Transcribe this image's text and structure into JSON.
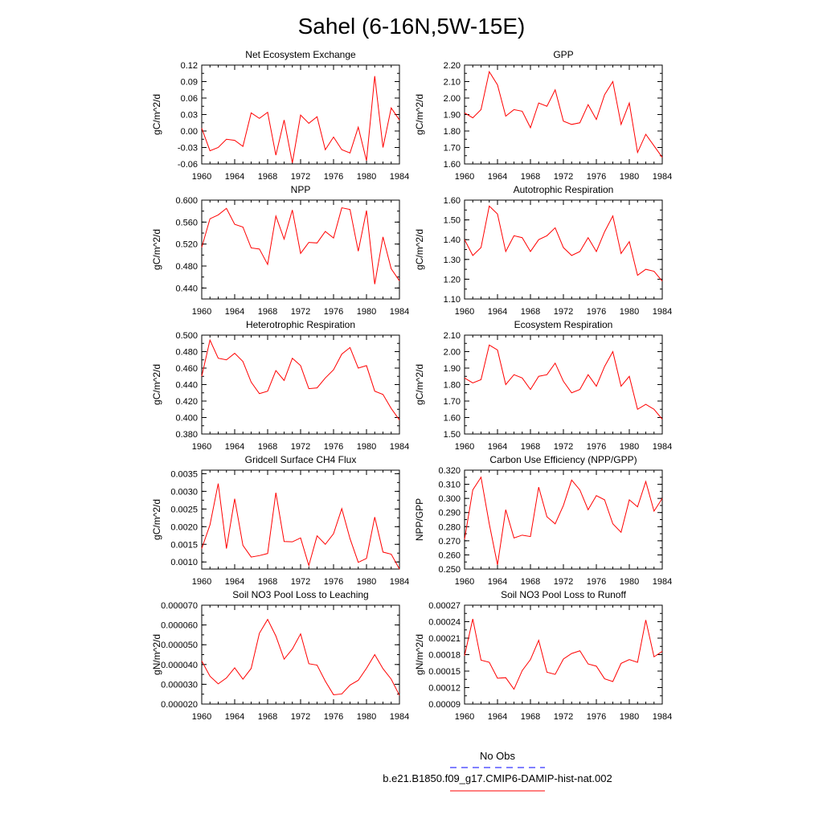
{
  "title": "Sahel (6-16N,5W-15E)",
  "colors": {
    "model": "#ff0000",
    "obs": "#0000ff",
    "axis": "#000000"
  },
  "legend": {
    "obs_label": "No Obs",
    "model_label": "b.e21.B1850.f09_g17.CMIP6-DAMIP-hist-nat.002"
  },
  "chart_data": [
    {
      "type": "line",
      "title": "Net Ecosystem Exchange",
      "ylabel": "gC/m^2/d",
      "xlim": [
        1960,
        1984
      ],
      "ylim": [
        -0.06,
        0.12
      ],
      "xticks": [
        1960,
        1964,
        1968,
        1972,
        1976,
        1980,
        1984
      ],
      "xticklabels": [
        "1960",
        "1964",
        "1968",
        "1972",
        "1976",
        "1980",
        "1984"
      ],
      "yticks": [
        -0.06,
        -0.03,
        0.0,
        0.03,
        0.06,
        0.09,
        0.12
      ],
      "yticklabels": [
        "-0.06",
        "-0.03",
        "0.00",
        "0.03",
        "0.06",
        "0.09",
        "0.12"
      ],
      "series": [
        {
          "values": [
            0.005,
            -0.036,
            -0.03,
            -0.015,
            -0.017,
            -0.028,
            0.033,
            0.023,
            0.034,
            -0.044,
            0.02,
            -0.058,
            0.029,
            0.014,
            0.026,
            -0.034,
            -0.011,
            -0.034,
            -0.04,
            0.007,
            -0.054,
            0.1,
            -0.03,
            0.042,
            0.02
          ]
        }
      ]
    },
    {
      "type": "line",
      "title": "GPP",
      "ylabel": "gC/m^2/d",
      "xlim": [
        1960,
        1984
      ],
      "ylim": [
        1.6,
        2.2
      ],
      "xticks": [
        1960,
        1964,
        1968,
        1972,
        1976,
        1980,
        1984
      ],
      "xticklabels": [
        "1960",
        "1964",
        "1968",
        "1972",
        "1976",
        "1980",
        "1984"
      ],
      "yticks": [
        1.6,
        1.7,
        1.8,
        1.9,
        2.0,
        2.1,
        2.2
      ],
      "yticklabels": [
        "1.60",
        "1.70",
        "1.80",
        "1.90",
        "2.00",
        "2.10",
        "2.20"
      ],
      "series": [
        {
          "values": [
            1.91,
            1.88,
            1.93,
            2.16,
            2.08,
            1.89,
            1.93,
            1.92,
            1.82,
            1.97,
            1.95,
            2.05,
            1.86,
            1.84,
            1.85,
            1.96,
            1.87,
            2.02,
            2.1,
            1.84,
            1.97,
            1.67,
            1.78,
            1.71,
            1.64
          ]
        }
      ]
    },
    {
      "type": "line",
      "title": "NPP",
      "ylabel": "gC/m^2/d",
      "xlim": [
        1960,
        1984
      ],
      "ylim": [
        0.42,
        0.6
      ],
      "xticks": [
        1960,
        1964,
        1968,
        1972,
        1976,
        1980,
        1984
      ],
      "xticklabels": [
        "1960",
        "1964",
        "1968",
        "1972",
        "1976",
        "1980",
        "1984"
      ],
      "yticks": [
        0.44,
        0.48,
        0.52,
        0.56,
        0.6
      ],
      "yticklabels": [
        "0.440",
        "0.480",
        "0.520",
        "0.560",
        "0.600"
      ],
      "series": [
        {
          "values": [
            0.514,
            0.566,
            0.573,
            0.585,
            0.556,
            0.551,
            0.513,
            0.511,
            0.483,
            0.571,
            0.529,
            0.582,
            0.503,
            0.523,
            0.522,
            0.543,
            0.531,
            0.586,
            0.583,
            0.507,
            0.581,
            0.447,
            0.533,
            0.475,
            0.453
          ]
        }
      ]
    },
    {
      "type": "line",
      "title": "Autotrophic Respiration",
      "ylabel": "gC/m^2/d",
      "xlim": [
        1960,
        1984
      ],
      "ylim": [
        1.1,
        1.6
      ],
      "xticks": [
        1960,
        1964,
        1968,
        1972,
        1976,
        1980,
        1984
      ],
      "xticklabels": [
        "1960",
        "1964",
        "1968",
        "1972",
        "1976",
        "1980",
        "1984"
      ],
      "yticks": [
        1.1,
        1.2,
        1.3,
        1.4,
        1.5,
        1.6
      ],
      "yticklabels": [
        "1.10",
        "1.20",
        "1.30",
        "1.40",
        "1.50",
        "1.60"
      ],
      "series": [
        {
          "values": [
            1.4,
            1.32,
            1.36,
            1.57,
            1.53,
            1.34,
            1.42,
            1.41,
            1.34,
            1.4,
            1.42,
            1.46,
            1.36,
            1.32,
            1.34,
            1.41,
            1.34,
            1.44,
            1.52,
            1.33,
            1.39,
            1.22,
            1.25,
            1.24,
            1.19
          ]
        }
      ]
    },
    {
      "type": "line",
      "title": "Heterotrophic Respiration",
      "ylabel": "gC/m^2/d",
      "xlim": [
        1960,
        1984
      ],
      "ylim": [
        0.38,
        0.5
      ],
      "xticks": [
        1960,
        1964,
        1968,
        1972,
        1976,
        1980,
        1984
      ],
      "xticklabels": [
        "1960",
        "1964",
        "1968",
        "1972",
        "1976",
        "1980",
        "1984"
      ],
      "yticks": [
        0.38,
        0.4,
        0.42,
        0.44,
        0.46,
        0.48,
        0.5
      ],
      "yticklabels": [
        "0.380",
        "0.400",
        "0.420",
        "0.440",
        "0.460",
        "0.480",
        "0.500"
      ],
      "series": [
        {
          "values": [
            0.45,
            0.494,
            0.472,
            0.47,
            0.478,
            0.468,
            0.443,
            0.429,
            0.432,
            0.457,
            0.445,
            0.472,
            0.463,
            0.435,
            0.436,
            0.448,
            0.458,
            0.477,
            0.485,
            0.46,
            0.463,
            0.432,
            0.428,
            0.411,
            0.397
          ]
        }
      ]
    },
    {
      "type": "line",
      "title": "Ecosystem Respiration",
      "ylabel": "gC/m^2/d",
      "xlim": [
        1960,
        1984
      ],
      "ylim": [
        1.5,
        2.1
      ],
      "xticks": [
        1960,
        1964,
        1968,
        1972,
        1976,
        1980,
        1984
      ],
      "xticklabels": [
        "1960",
        "1964",
        "1968",
        "1972",
        "1976",
        "1980",
        "1984"
      ],
      "yticks": [
        1.5,
        1.6,
        1.7,
        1.8,
        1.9,
        2.0,
        2.1
      ],
      "yticklabels": [
        "1.50",
        "1.60",
        "1.70",
        "1.80",
        "1.90",
        "2.00",
        "2.10"
      ],
      "series": [
        {
          "values": [
            1.84,
            1.81,
            1.83,
            2.04,
            2.01,
            1.8,
            1.86,
            1.84,
            1.77,
            1.85,
            1.86,
            1.93,
            1.82,
            1.75,
            1.77,
            1.86,
            1.79,
            1.91,
            2.0,
            1.79,
            1.85,
            1.65,
            1.68,
            1.65,
            1.59
          ]
        }
      ]
    },
    {
      "type": "line",
      "title": "Gridcell Surface CH4 Flux",
      "ylabel": "gC/m^2/d",
      "xlim": [
        1960,
        1984
      ],
      "ylim": [
        0.0008,
        0.0036
      ],
      "xticks": [
        1960,
        1964,
        1968,
        1972,
        1976,
        1980,
        1984
      ],
      "xticklabels": [
        "1960",
        "1964",
        "1968",
        "1972",
        "1976",
        "1980",
        "1984"
      ],
      "yticks": [
        0.001,
        0.0015,
        0.002,
        0.0025,
        0.003,
        0.0035
      ],
      "yticklabels": [
        "0.0010",
        "0.0015",
        "0.0020",
        "0.0025",
        "0.0030",
        "0.0035"
      ],
      "series": [
        {
          "values": [
            0.00138,
            0.00205,
            0.00322,
            0.00138,
            0.00279,
            0.00147,
            0.00114,
            0.00118,
            0.00124,
            0.00296,
            0.00158,
            0.00157,
            0.00168,
            0.0009,
            0.00174,
            0.0015,
            0.0018,
            0.00251,
            0.00166,
            0.00099,
            0.0011,
            0.00227,
            0.00128,
            0.00122,
            0.0008
          ]
        }
      ]
    },
    {
      "type": "line",
      "title": "Carbon Use Efficiency (NPP/GPP)",
      "ylabel": "NPP/GPP",
      "xlim": [
        1960,
        1984
      ],
      "ylim": [
        0.25,
        0.32
      ],
      "xticks": [
        1960,
        1964,
        1968,
        1972,
        1976,
        1980,
        1984
      ],
      "xticklabels": [
        "1960",
        "1964",
        "1968",
        "1972",
        "1976",
        "1980",
        "1984"
      ],
      "yticks": [
        0.25,
        0.26,
        0.27,
        0.28,
        0.29,
        0.3,
        0.31,
        0.32
      ],
      "yticklabels": [
        "0.250",
        "0.260",
        "0.270",
        "0.280",
        "0.290",
        "0.300",
        "0.310",
        "0.320"
      ],
      "series": [
        {
          "values": [
            0.271,
            0.306,
            0.315,
            0.282,
            0.253,
            0.292,
            0.272,
            0.274,
            0.273,
            0.308,
            0.287,
            0.282,
            0.295,
            0.313,
            0.306,
            0.292,
            0.302,
            0.299,
            0.282,
            0.276,
            0.299,
            0.294,
            0.312,
            0.291,
            0.3
          ]
        }
      ]
    },
    {
      "type": "line",
      "title": "Soil NO3 Pool Loss to Leaching",
      "ylabel": "gN/m^2/d",
      "xlim": [
        1960,
        1984
      ],
      "ylim": [
        2e-05,
        7e-05
      ],
      "xticks": [
        1960,
        1964,
        1968,
        1972,
        1976,
        1980,
        1984
      ],
      "xticklabels": [
        "1960",
        "1964",
        "1968",
        "1972",
        "1976",
        "1980",
        "1984"
      ],
      "yticks": [
        2e-05,
        3e-05,
        4e-05,
        5e-05,
        6e-05,
        7e-05
      ],
      "yticklabels": [
        "0.000020",
        "0.000030",
        "0.000040",
        "0.000050",
        "0.000060",
        "0.000070"
      ],
      "series": [
        {
          "values": [
            4.18e-05,
            3.41e-05,
            3.02e-05,
            3.32e-05,
            3.83e-05,
            3.26e-05,
            3.8e-05,
            5.58e-05,
            6.28e-05,
            5.44e-05,
            4.27e-05,
            4.78e-05,
            5.55e-05,
            4.04e-05,
            3.97e-05,
            3.16e-05,
            2.47e-05,
            2.51e-05,
            2.96e-05,
            3.2e-05,
            3.81e-05,
            4.5e-05,
            3.79e-05,
            3.26e-05,
            2.44e-05
          ]
        }
      ]
    },
    {
      "type": "line",
      "title": "Soil NO3 Pool Loss to Runoff",
      "ylabel": "gN/m^2/d",
      "xlim": [
        1960,
        1984
      ],
      "ylim": [
        9e-05,
        0.00027
      ],
      "xticks": [
        1960,
        1964,
        1968,
        1972,
        1976,
        1980,
        1984
      ],
      "xticklabels": [
        "1960",
        "1964",
        "1968",
        "1972",
        "1976",
        "1980",
        "1984"
      ],
      "yticks": [
        9e-05,
        0.00012,
        0.00015,
        0.00018,
        0.00021,
        0.00024,
        0.00027
      ],
      "yticklabels": [
        "0.00009",
        "0.00012",
        "0.00015",
        "0.00018",
        "0.00021",
        "0.00024",
        "0.00027"
      ],
      "series": [
        {
          "values": [
            0.000178,
            0.000245,
            0.00017,
            0.000166,
            0.000137,
            0.000138,
            0.000117,
            0.000151,
            0.000171,
            0.000206,
            0.000148,
            0.000144,
            0.000172,
            0.000182,
            0.000187,
            0.000163,
            0.000159,
            0.000136,
            0.000131,
            0.000164,
            0.000171,
            0.000166,
            0.000243,
            0.000176,
            0.000186
          ]
        }
      ]
    }
  ]
}
